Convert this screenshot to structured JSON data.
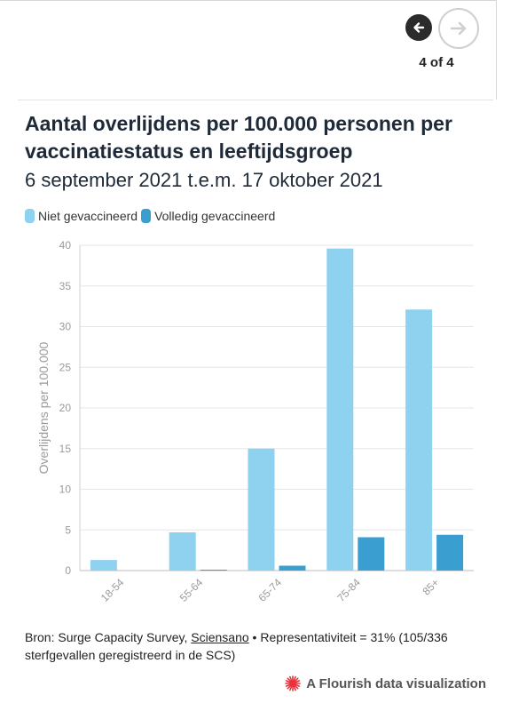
{
  "navigation": {
    "pager_text": "4 of 4",
    "prev_icon": "arrow-left-icon",
    "next_icon": "arrow-right-icon"
  },
  "chart_data": {
    "type": "bar",
    "title": "Aantal overlijdens per 100.000 personen per vaccinatiestatus en leeftijdsgroep",
    "subtitle": "6 september 2021 t.e.m. 17 oktober 2021",
    "categories": [
      "18-54",
      "55-64",
      "65-74",
      "75-84",
      "85+"
    ],
    "series": [
      {
        "name": "Niet gevaccineerd",
        "color": "#8ed2f0",
        "values": [
          1.3,
          4.7,
          15.0,
          39.6,
          32.1
        ]
      },
      {
        "name": "Volledig gevaccineerd",
        "color": "#3a9fd0",
        "values": [
          0.0,
          0.1,
          0.6,
          4.1,
          4.4
        ]
      }
    ],
    "ylabel": "Overlijdens per 100.000",
    "xlabel": "",
    "ylim": [
      0,
      40
    ],
    "yticks": [
      0,
      5,
      10,
      15,
      20,
      25,
      30,
      35,
      40
    ],
    "grid": true,
    "legend_position": "top-left"
  },
  "footer": {
    "source_prefix": "Bron: Surge Capacity Survey, ",
    "source_link": "Sciensano",
    "source_suffix": " • Representativiteit = 31% (105/336 sterfgevallen geregistreerd in de SCS)",
    "flourish_label": "A Flourish data visualization",
    "flourish_icon": "flourish-logo-icon"
  }
}
